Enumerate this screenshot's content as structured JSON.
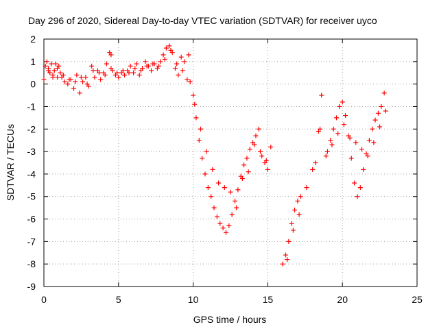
{
  "chart_data": {
    "type": "scatter",
    "title": "Day 296 of 2020, Sidereal Day-to-day VTEC variation (SDTVAR) for receiver uyco",
    "xlabel": "GPS time / hours",
    "ylabel": "SDTVAR / TECUs",
    "xlim": [
      0,
      25
    ],
    "ylim": [
      -9,
      2
    ],
    "xticks": [
      "0",
      "5",
      "10",
      "15",
      "20",
      "25"
    ],
    "yticks": [
      "-9",
      "-8",
      "-7",
      "-6",
      "-5",
      "-4",
      "-3",
      "-2",
      "-1",
      "0",
      "1",
      "2"
    ],
    "grid": true,
    "marker": "+",
    "color": "#ff0000",
    "series": [
      {
        "x": [
          0.0,
          0.1,
          0.2,
          0.3,
          0.4,
          0.5,
          0.6,
          0.7,
          0.8,
          0.9,
          1.0,
          1.1,
          1.2,
          1.4,
          1.6,
          1.8,
          2.0,
          2.2,
          2.4,
          2.6,
          2.8,
          3.0,
          3.2,
          3.4,
          3.6,
          3.8,
          4.0,
          4.2,
          4.4,
          4.5,
          4.6,
          4.8,
          5.0,
          5.2,
          5.4,
          5.6,
          5.8,
          6.0,
          6.2,
          6.4,
          6.6,
          6.8,
          7.0,
          7.2,
          7.4,
          7.6,
          7.8,
          8.0,
          8.2,
          8.4,
          8.6,
          8.8,
          9.0,
          9.2,
          9.4,
          9.6,
          9.8,
          10.0,
          10.2,
          10.4,
          10.6,
          10.8,
          11.0,
          11.2,
          11.4,
          11.6,
          11.8,
          12.0,
          12.2,
          12.4,
          12.6,
          12.8,
          13.0,
          13.2,
          13.4,
          13.6,
          13.8,
          14.0,
          14.2,
          14.4,
          14.6,
          14.8,
          15.0,
          15.2,
          16.0,
          16.2,
          16.4,
          16.6,
          16.8,
          17.0,
          17.2,
          17.6,
          18.0,
          18.2,
          18.4,
          18.6,
          19.0,
          19.2,
          19.4,
          19.6,
          19.8,
          20.0,
          20.2,
          20.4,
          20.6,
          20.8,
          21.0,
          21.2,
          21.4,
          21.6,
          21.8,
          22.0,
          22.2,
          22.4,
          22.6,
          22.8
        ],
        "y": [
          0.2,
          0.8,
          1.0,
          0.7,
          0.5,
          0.9,
          0.4,
          0.6,
          0.9,
          0.3,
          0.8,
          0.5,
          0.3,
          0.1,
          0.0,
          0.2,
          -0.2,
          0.4,
          -0.4,
          0.1,
          0.3,
          -0.1,
          0.8,
          0.3,
          0.6,
          0.2,
          0.5,
          0.9,
          1.4,
          1.3,
          0.6,
          0.4,
          0.3,
          0.5,
          0.4,
          0.6,
          0.8,
          0.5,
          0.9,
          0.4,
          0.7,
          1.0,
          0.8,
          0.6,
          0.9,
          0.7,
          1.0,
          1.3,
          1.6,
          1.7,
          1.4,
          0.7,
          0.4,
          1.2,
          1.0,
          0.2,
          0.1,
          -0.5,
          -1.5,
          -2.5,
          -3.3,
          -4.0,
          -4.6,
          -5.0,
          -5.5,
          -5.9,
          -6.2,
          -6.4,
          -6.6,
          -6.3,
          -5.8,
          -5.2,
          -4.7,
          -4.1,
          -3.6,
          -3.3,
          -2.9,
          -2.6,
          -2.3,
          -2.0,
          -3.2,
          -3.5,
          -3.8,
          -2.8,
          -8.0,
          -7.6,
          -7.0,
          -6.2,
          -5.6,
          -5.2,
          -5.0,
          -4.6,
          -3.8,
          -3.5,
          -2.1,
          -0.5,
          -3.0,
          -2.5,
          -2.0,
          -1.5,
          -1.0,
          -0.8,
          -1.4,
          -2.3,
          -3.3,
          -4.4,
          -5.0,
          -4.6,
          -3.8,
          -3.1,
          -2.5,
          -2.0,
          -1.6,
          -1.3,
          -1.0,
          -0.4
        ],
        "x2": [
          0.3,
          0.6,
          0.9,
          1.3,
          1.7,
          2.1,
          2.5,
          2.9,
          3.3,
          3.7,
          4.1,
          4.5,
          4.9,
          5.3,
          5.7,
          6.1,
          6.5,
          6.9,
          7.3,
          7.7,
          8.1,
          8.5,
          8.9,
          9.3,
          9.7,
          10.1,
          10.5,
          10.9,
          11.3,
          11.7,
          12.1,
          12.5,
          12.9,
          13.3,
          13.7,
          14.1,
          14.5,
          14.9,
          16.3,
          16.7,
          17.1,
          18.5,
          18.9,
          19.3,
          19.7,
          20.1,
          20.5,
          20.9,
          21.3,
          21.7,
          22.1,
          22.5,
          22.9
        ],
        "y2": [
          0.6,
          0.3,
          0.7,
          0.4,
          0.2,
          0.1,
          0.3,
          0.0,
          0.6,
          0.5,
          0.4,
          0.7,
          0.5,
          0.6,
          0.5,
          0.7,
          0.6,
          0.8,
          0.9,
          0.8,
          1.1,
          1.5,
          0.9,
          0.6,
          1.3,
          -0.9,
          -2.0,
          -3.0,
          -3.8,
          -4.4,
          -4.6,
          -4.8,
          -5.5,
          -4.2,
          -3.9,
          -2.7,
          -3.0,
          -3.4,
          -7.8,
          -6.5,
          -5.8,
          -2.0,
          -3.2,
          -2.7,
          -2.2,
          -1.8,
          -2.4,
          -2.6,
          -2.9,
          -3.2,
          -2.6,
          -1.9,
          -1.2
        ]
      }
    ]
  }
}
